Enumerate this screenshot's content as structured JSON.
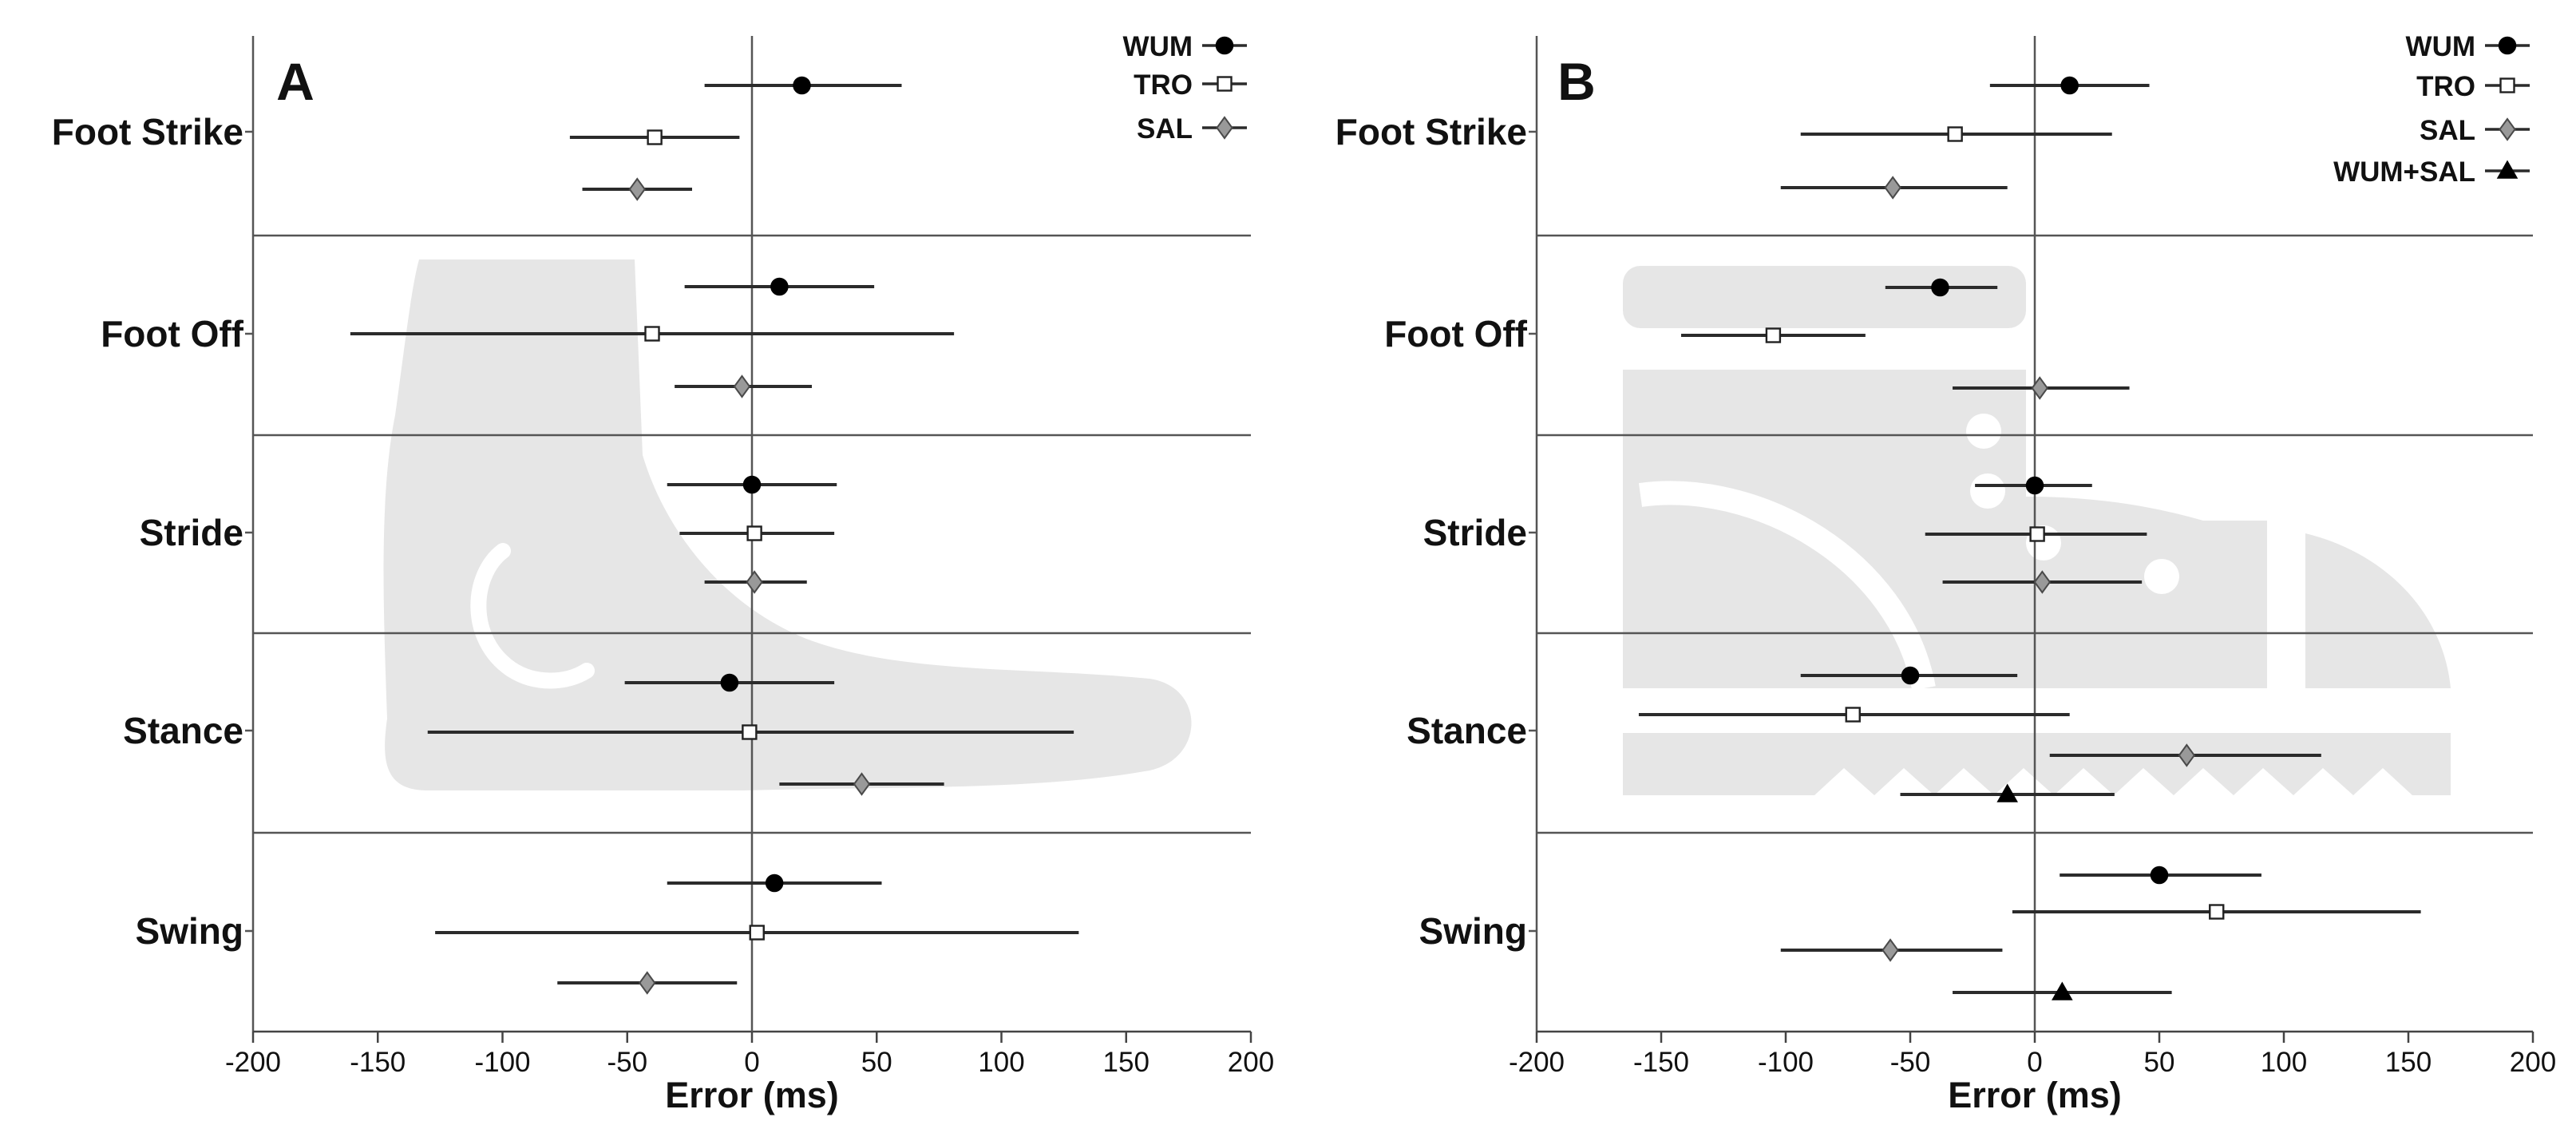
{
  "chart_data": [
    {
      "type": "scatter",
      "panel_label": "A",
      "title": "",
      "xlabel": "Error (ms)",
      "ylabel": "",
      "xlim": [
        -200,
        200
      ],
      "xticks": [
        -200,
        -150,
        -100,
        -50,
        0,
        50,
        100,
        150,
        200
      ],
      "tick_labels": [
        "-200",
        "-150",
        "-100",
        "-50",
        "0",
        "50",
        "100",
        "150",
        "200"
      ],
      "grid": false,
      "legend_position": "top-right",
      "categories": [
        "Foot Strike",
        "Foot Off",
        "Stride",
        "Stance",
        "Swing"
      ],
      "series": [
        {
          "name": "WUM",
          "marker": "circle-filled",
          "color": "#000000",
          "points": [
            {
              "category": "Foot Strike",
              "mean": 20,
              "low": -19,
              "high": 60
            },
            {
              "category": "Foot Off",
              "mean": 11,
              "low": -27,
              "high": 49
            },
            {
              "category": "Stride",
              "mean": 0,
              "low": -34,
              "high": 34
            },
            {
              "category": "Stance",
              "mean": -9,
              "low": -51,
              "high": 33
            },
            {
              "category": "Swing",
              "mean": 9,
              "low": -34,
              "high": 52
            }
          ]
        },
        {
          "name": "TRO",
          "marker": "square-open",
          "color": "#ffffff",
          "points": [
            {
              "category": "Foot Strike",
              "mean": -39,
              "low": -73,
              "high": -5
            },
            {
              "category": "Foot Off",
              "mean": -40,
              "low": -161,
              "high": 81
            },
            {
              "category": "Stride",
              "mean": 1,
              "low": -29,
              "high": 33
            },
            {
              "category": "Stance",
              "mean": -1,
              "low": -130,
              "high": 129
            },
            {
              "category": "Swing",
              "mean": 2,
              "low": -127,
              "high": 131
            }
          ]
        },
        {
          "name": "SAL",
          "marker": "diamond-gray",
          "color": "#999999",
          "points": [
            {
              "category": "Foot Strike",
              "mean": -46,
              "low": -68,
              "high": -24
            },
            {
              "category": "Foot Off",
              "mean": -4,
              "low": -31,
              "high": 24
            },
            {
              "category": "Stride",
              "mean": 1,
              "low": -19,
              "high": 22
            },
            {
              "category": "Stance",
              "mean": 44,
              "low": 11,
              "high": 77
            },
            {
              "category": "Swing",
              "mean": -42,
              "low": -78,
              "high": -6
            }
          ]
        }
      ]
    },
    {
      "type": "scatter",
      "panel_label": "B",
      "title": "",
      "xlabel": "Error (ms)",
      "ylabel": "",
      "xlim": [
        -200,
        200
      ],
      "xticks": [
        -200,
        -150,
        -100,
        -50,
        0,
        50,
        100,
        150,
        200
      ],
      "tick_labels": [
        "-200",
        "-150",
        "-100",
        "-50",
        "0",
        "50",
        "100",
        "150",
        "200"
      ],
      "grid": false,
      "legend_position": "top-right",
      "categories": [
        "Foot Strike",
        "Foot Off",
        "Stride",
        "Stance",
        "Swing"
      ],
      "series": [
        {
          "name": "WUM",
          "marker": "circle-filled",
          "color": "#000000",
          "points": [
            {
              "category": "Foot Strike",
              "mean": 14,
              "low": -18,
              "high": 46
            },
            {
              "category": "Foot Off",
              "mean": -38,
              "low": -60,
              "high": -15
            },
            {
              "category": "Stride",
              "mean": 0,
              "low": -24,
              "high": 23
            },
            {
              "category": "Stance",
              "mean": -50,
              "low": -94,
              "high": -7
            },
            {
              "category": "Swing",
              "mean": 50,
              "low": 10,
              "high": 91
            }
          ]
        },
        {
          "name": "TRO",
          "marker": "square-open",
          "color": "#ffffff",
          "points": [
            {
              "category": "Foot Strike",
              "mean": -32,
              "low": -94,
              "high": 31
            },
            {
              "category": "Foot Off",
              "mean": -105,
              "low": -142,
              "high": -68
            },
            {
              "category": "Stride",
              "mean": 1,
              "low": -44,
              "high": 45
            },
            {
              "category": "Stance",
              "mean": -73,
              "low": -159,
              "high": 14
            },
            {
              "category": "Swing",
              "mean": 73,
              "low": -9,
              "high": 155
            }
          ]
        },
        {
          "name": "SAL",
          "marker": "diamond-gray",
          "color": "#999999",
          "points": [
            {
              "category": "Foot Strike",
              "mean": -57,
              "low": -102,
              "high": -11
            },
            {
              "category": "Foot Off",
              "mean": 2,
              "low": -33,
              "high": 38
            },
            {
              "category": "Stride",
              "mean": 3,
              "low": -37,
              "high": 43
            },
            {
              "category": "Stance",
              "mean": 61,
              "low": 6,
              "high": 115
            },
            {
              "category": "Swing",
              "mean": -58,
              "low": -102,
              "high": -13
            }
          ]
        },
        {
          "name": "WUM+SAL",
          "marker": "triangle-filled",
          "color": "#000000",
          "points": [
            {
              "category": "Stance",
              "mean": -11,
              "low": -54,
              "high": 32
            },
            {
              "category": "Swing",
              "mean": 11,
              "low": -33,
              "high": 55
            }
          ]
        }
      ]
    }
  ]
}
